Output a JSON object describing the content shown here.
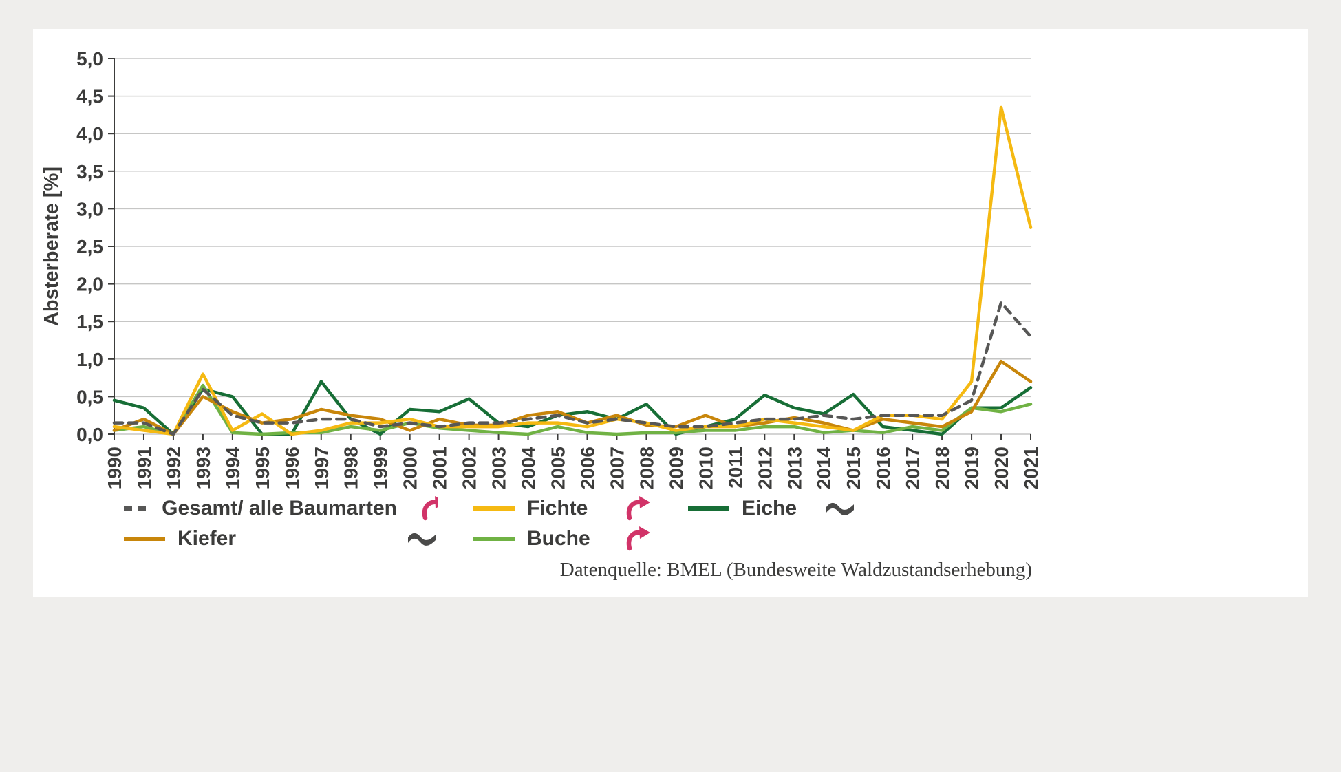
{
  "chart_data": {
    "type": "line",
    "title": "",
    "ylabel": "Absterberate [%]",
    "ylim": [
      0,
      5
    ],
    "ytick_step": 0.5,
    "decimal_style": "comma",
    "grid": "horizontal",
    "legend_position": "bottom",
    "categories": [
      "1990",
      "1991",
      "1992",
      "1993",
      "1994",
      "1995",
      "1996",
      "1997",
      "1998",
      "1999",
      "2000",
      "2001",
      "2002",
      "2003",
      "2004",
      "2005",
      "2006",
      "2007",
      "2008",
      "2009",
      "2010",
      "2011",
      "2012",
      "2013",
      "2014",
      "2015",
      "2016",
      "2017",
      "2018",
      "2019",
      "2020",
      "2021"
    ],
    "series": [
      {
        "id": "eiche",
        "name": "Eiche",
        "color": "#176e36",
        "dash": "",
        "values": [
          0.45,
          0.35,
          0.0,
          0.6,
          0.5,
          0.0,
          0.0,
          0.7,
          0.2,
          0.0,
          0.33,
          0.3,
          0.47,
          0.15,
          0.1,
          0.25,
          0.3,
          0.2,
          0.4,
          0.0,
          0.1,
          0.2,
          0.52,
          0.35,
          0.27,
          0.53,
          0.1,
          0.05,
          0.0,
          0.35,
          0.35,
          0.62
        ]
      },
      {
        "id": "buche",
        "name": "Buche",
        "color": "#70b244",
        "dash": "",
        "values": [
          0.05,
          0.1,
          0.0,
          0.65,
          0.02,
          0.0,
          0.02,
          0.02,
          0.1,
          0.05,
          0.15,
          0.08,
          0.05,
          0.02,
          0.0,
          0.1,
          0.02,
          0.0,
          0.02,
          0.02,
          0.05,
          0.05,
          0.1,
          0.1,
          0.02,
          0.05,
          0.02,
          0.1,
          0.05,
          0.35,
          0.3,
          0.4
        ]
      },
      {
        "id": "kiefer",
        "name": "Kiefer",
        "color": "#c8860b",
        "dash": "",
        "values": [
          0.05,
          0.2,
          0.0,
          0.5,
          0.3,
          0.15,
          0.2,
          0.33,
          0.25,
          0.2,
          0.05,
          0.2,
          0.12,
          0.12,
          0.25,
          0.3,
          0.15,
          0.25,
          0.12,
          0.1,
          0.25,
          0.1,
          0.15,
          0.22,
          0.15,
          0.05,
          0.2,
          0.15,
          0.1,
          0.3,
          0.97,
          0.7
        ]
      },
      {
        "id": "fichte",
        "name": "Fichte",
        "color": "#f5b912",
        "dash": "",
        "values": [
          0.1,
          0.05,
          0.0,
          0.8,
          0.05,
          0.27,
          0.0,
          0.05,
          0.15,
          0.15,
          0.2,
          0.1,
          0.1,
          0.1,
          0.15,
          0.15,
          0.1,
          0.2,
          0.15,
          0.05,
          0.1,
          0.1,
          0.2,
          0.15,
          0.1,
          0.05,
          0.25,
          0.25,
          0.2,
          0.7,
          4.35,
          2.75
        ]
      },
      {
        "id": "gesamt",
        "name": "Gesamt/ alle Baumarten",
        "color": "#575756",
        "dash": "12 9",
        "values": [
          0.15,
          0.15,
          0.0,
          0.6,
          0.25,
          0.15,
          0.15,
          0.2,
          0.2,
          0.1,
          0.15,
          0.1,
          0.15,
          0.15,
          0.2,
          0.25,
          0.15,
          0.2,
          0.15,
          0.1,
          0.1,
          0.15,
          0.2,
          0.2,
          0.25,
          0.2,
          0.25,
          0.25,
          0.25,
          0.45,
          1.75,
          1.3
        ]
      }
    ]
  },
  "legend": {
    "items": [
      {
        "label": "Gesamt/ alle Baumarten",
        "series": "gesamt",
        "trend": "up"
      },
      {
        "label": "Fichte",
        "series": "fichte",
        "trend": "up"
      },
      {
        "label": "Eiche",
        "series": "eiche",
        "trend": "stable"
      },
      {
        "label": "Kiefer",
        "series": "kiefer",
        "trend": "stable"
      },
      {
        "label": "Buche",
        "series": "buche",
        "trend": "up"
      }
    ]
  },
  "source": "Datenquelle: BMEL (Bundesweite Waldzustandserhebung)",
  "colors": {
    "trend_up": "#d13368",
    "trend_stable": "#4a4a49",
    "axis": "#3c3c3b",
    "grid": "#c6c6c5",
    "background": "#efeeec",
    "card": "#ffffff"
  }
}
